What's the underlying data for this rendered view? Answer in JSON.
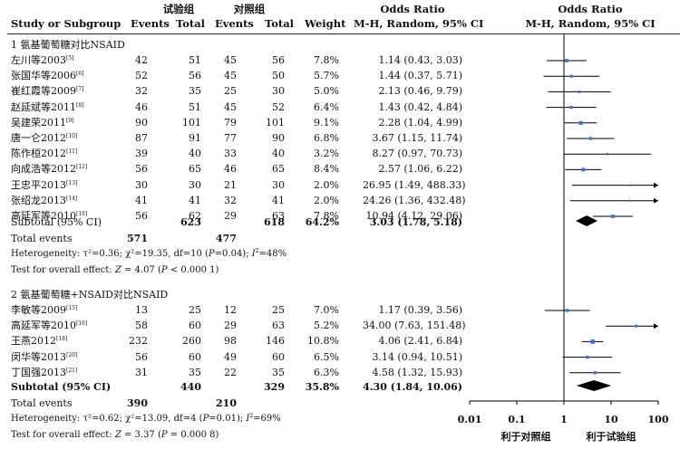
{
  "header": {
    "study": "Study or Subgroup",
    "exp_group": "试验组",
    "ctrl_group": "对照组",
    "events": "Events",
    "total": "Total",
    "weight": "Weight",
    "or_title": "Odds Ratio",
    "or_method": "M-H, Random, 95% CI"
  },
  "subgroups": [
    {
      "title": "1 氨基葡萄糖对比NSAID",
      "studies": [
        {
          "name": "左川等2003",
          "ref": "[5]",
          "e_ev": "42",
          "e_tot": "51",
          "c_ev": "45",
          "c_tot": "56",
          "weight": "7.8%",
          "or_text": "1.14 (0.43, 3.03)",
          "or": 1.14,
          "lo": 0.43,
          "hi": 3.03
        },
        {
          "name": "张国华等2006",
          "ref": "[6]",
          "e_ev": "52",
          "e_tot": "56",
          "c_ev": "45",
          "c_tot": "50",
          "weight": "5.7%",
          "or_text": "1.44 (0.37, 5.71)",
          "or": 1.44,
          "lo": 0.37,
          "hi": 5.71
        },
        {
          "name": "崔红霞等2009",
          "ref": "[7]",
          "e_ev": "32",
          "e_tot": "35",
          "c_ev": "25",
          "c_tot": "30",
          "weight": "5.0%",
          "or_text": "2.13 (0.46, 9.79)",
          "or": 2.13,
          "lo": 0.46,
          "hi": 9.79
        },
        {
          "name": "赵延斌等2011",
          "ref": "[8]",
          "e_ev": "46",
          "e_tot": "51",
          "c_ev": "45",
          "c_tot": "52",
          "weight": "6.4%",
          "or_text": "1.43 (0.42, 4.84)",
          "or": 1.43,
          "lo": 0.42,
          "hi": 4.84
        },
        {
          "name": "吴建荣2011",
          "ref": "[9]",
          "e_ev": "90",
          "e_tot": "101",
          "c_ev": "79",
          "c_tot": "101",
          "weight": "9.1%",
          "or_text": "2.28 (1.04, 4.99)",
          "or": 2.28,
          "lo": 1.04,
          "hi": 4.99
        },
        {
          "name": "唐一仑2012",
          "ref": "[10]",
          "e_ev": "87",
          "e_tot": "91",
          "c_ev": "77",
          "c_tot": "90",
          "weight": "6.8%",
          "or_text": "3.67 (1.15, 11.74)",
          "or": 3.67,
          "lo": 1.15,
          "hi": 11.74
        },
        {
          "name": "陈作桓2012",
          "ref": "[11]",
          "e_ev": "39",
          "e_tot": "40",
          "c_ev": "33",
          "c_tot": "40",
          "weight": "3.2%",
          "or_text": "8.27 (0.97, 70.73)",
          "or": 8.27,
          "lo": 0.97,
          "hi": 70.73
        },
        {
          "name": "向成浩等2012",
          "ref": "[12]",
          "e_ev": "56",
          "e_tot": "65",
          "c_ev": "46",
          "c_tot": "65",
          "weight": "8.4%",
          "or_text": "2.57 (1.06, 6.22)",
          "or": 2.57,
          "lo": 1.06,
          "hi": 6.22
        },
        {
          "name": "王忠平2013",
          "ref": "[13]",
          "e_ev": "30",
          "e_tot": "30",
          "c_ev": "21",
          "c_tot": "30",
          "weight": "2.0%",
          "or_text": "26.95 (1.49, 488.33)",
          "or": 26.95,
          "lo": 1.49,
          "hi": 488.33
        },
        {
          "name": "张绍龙2013",
          "ref": "[14]",
          "e_ev": "41",
          "e_tot": "41",
          "c_ev": "32",
          "c_tot": "41",
          "weight": "2.0%",
          "or_text": "24.26 (1.36, 432.48)",
          "or": 24.26,
          "lo": 1.36,
          "hi": 432.48
        },
        {
          "name": "高延军等2010",
          "ref": "[16]",
          "e_ev": "56",
          "e_tot": "62",
          "c_ev": "29",
          "c_tot": "63",
          "weight": "7.8%",
          "or_text": "10.94 (4.12, 29.06)",
          "or": 10.94,
          "lo": 4.12,
          "hi": 29.06
        }
      ],
      "subtotal": {
        "label": "Subtotal (95% CI)",
        "e_tot": "623",
        "c_tot": "618",
        "weight": "64.2%",
        "or_text": "3.03 (1.78, 5.18)",
        "or": 3.03,
        "lo": 1.78,
        "hi": 5.18
      },
      "total_events": {
        "label": "Total events",
        "e_ev": "571",
        "c_ev": "477"
      },
      "heterogeneity": {
        "prefix": "Heterogeneity: τ²=0.36;  χ²=19.35, df=10 (",
        "p": "P",
        "mid": "=0.04); ",
        "i2": "I",
        "suffix": "=48%"
      },
      "overall": {
        "prefix": "Test for overall effect: ",
        "z": "Z",
        "mid": " = 4.07 (",
        "p": "P",
        "suffix": " < 0.000 1)"
      }
    },
    {
      "title": "2 氨基葡萄糖+NSAID对比NSAID",
      "studies": [
        {
          "name": "李敏等2009",
          "ref": "[15]",
          "e_ev": "13",
          "e_tot": "25",
          "c_ev": "12",
          "c_tot": "25",
          "weight": "7.0%",
          "or_text": "1.17 (0.39, 3.56)",
          "or": 1.17,
          "lo": 0.39,
          "hi": 3.56
        },
        {
          "name": "高延军等2010",
          "ref": "[16]",
          "e_ev": "58",
          "e_tot": "60",
          "c_ev": "29",
          "c_tot": "63",
          "weight": "5.2%",
          "or_text": "34.00 (7.63, 151.48)",
          "or": 34.0,
          "lo": 7.63,
          "hi": 151.48
        },
        {
          "name": "王燕2012",
          "ref": "[18]",
          "e_ev": "232",
          "e_tot": "260",
          "c_ev": "98",
          "c_tot": "146",
          "weight": "10.8%",
          "or_text": "4.06 (2.41, 6.84)",
          "or": 4.06,
          "lo": 2.41,
          "hi": 6.84
        },
        {
          "name": "闵华等2013",
          "ref": "[20]",
          "e_ev": "56",
          "e_tot": "60",
          "c_ev": "49",
          "c_tot": "60",
          "weight": "6.5%",
          "or_text": "3.14 (0.94, 10.51)",
          "or": 3.14,
          "lo": 0.94,
          "hi": 10.51
        },
        {
          "name": "丁国强2013",
          "ref": "[21]",
          "e_ev": "31",
          "e_tot": "35",
          "c_ev": "22",
          "c_tot": "35",
          "weight": "6.3%",
          "or_text": "4.58 (1.32, 15.93)",
          "or": 4.58,
          "lo": 1.32,
          "hi": 15.93
        }
      ],
      "subtotal": {
        "label": "Subtotal (95% CI)",
        "e_tot": "440",
        "c_tot": "329",
        "weight": "35.8%",
        "or_text": "4.30 (1.84, 10.06)",
        "or": 4.3,
        "lo": 1.84,
        "hi": 10.06
      },
      "total_events": {
        "label": "Total events",
        "e_ev": "390",
        "c_ev": "210"
      },
      "heterogeneity": {
        "prefix": "Heterogeneity: τ²=0.62;  χ²=13.09, df=4 (",
        "p": "P",
        "mid": "=0.01); ",
        "i2": "I",
        "suffix": "=69%"
      },
      "overall": {
        "prefix": "Test for overall effect: ",
        "z": "Z",
        "mid": " = 3.37 (",
        "p": "P",
        "suffix": " = 0.000 8)"
      }
    }
  ],
  "chart_data": {
    "type": "forest",
    "scale": "log",
    "xlim": [
      0.01,
      100
    ],
    "ticks": [
      0.01,
      0.1,
      1,
      10,
      100
    ],
    "tick_labels": [
      "0.01",
      "0.1",
      "1",
      "10",
      "100"
    ],
    "left_label": "利于对照组",
    "right_label": "利于试验组",
    "null_value": 1,
    "colors": {
      "line": "#000000",
      "point": "#4a6fd0",
      "diamond": "#000000"
    }
  }
}
